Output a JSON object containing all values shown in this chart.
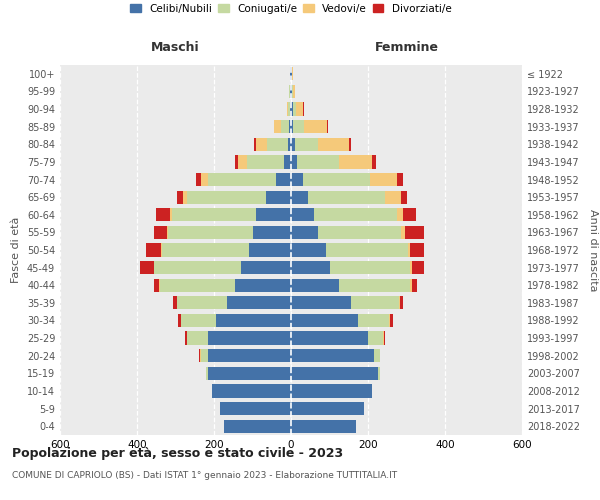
{
  "age_groups": [
    "0-4",
    "5-9",
    "10-14",
    "15-19",
    "20-24",
    "25-29",
    "30-34",
    "35-39",
    "40-44",
    "45-49",
    "50-54",
    "55-59",
    "60-64",
    "65-69",
    "70-74",
    "75-79",
    "80-84",
    "85-89",
    "90-94",
    "95-99",
    "100+"
  ],
  "birth_years": [
    "2018-2022",
    "2013-2017",
    "2008-2012",
    "2003-2007",
    "1998-2002",
    "1993-1997",
    "1988-1992",
    "1983-1987",
    "1978-1982",
    "1973-1977",
    "1968-1972",
    "1963-1967",
    "1958-1962",
    "1953-1957",
    "1948-1952",
    "1943-1947",
    "1938-1942",
    "1933-1937",
    "1928-1932",
    "1923-1927",
    "≤ 1922"
  ],
  "maschi": {
    "celibi": [
      175,
      185,
      205,
      215,
      215,
      215,
      195,
      165,
      145,
      130,
      110,
      100,
      90,
      65,
      40,
      18,
      8,
      5,
      3,
      2,
      2
    ],
    "coniugati": [
      0,
      0,
      0,
      5,
      20,
      55,
      90,
      130,
      195,
      225,
      225,
      220,
      220,
      205,
      175,
      95,
      55,
      20,
      5,
      2,
      1
    ],
    "vedovi": [
      0,
      0,
      0,
      0,
      1,
      1,
      1,
      1,
      2,
      2,
      2,
      2,
      5,
      10,
      20,
      25,
      28,
      18,
      3,
      1,
      0
    ],
    "divorziati": [
      0,
      0,
      0,
      1,
      3,
      5,
      8,
      10,
      15,
      35,
      40,
      35,
      35,
      15,
      12,
      8,
      5,
      2,
      0,
      0,
      0
    ]
  },
  "femmine": {
    "nubili": [
      170,
      190,
      210,
      225,
      215,
      200,
      175,
      155,
      125,
      100,
      90,
      70,
      60,
      45,
      30,
      15,
      10,
      5,
      4,
      3,
      2
    ],
    "coniugate": [
      0,
      0,
      0,
      5,
      15,
      40,
      80,
      125,
      185,
      210,
      215,
      215,
      215,
      200,
      175,
      110,
      60,
      28,
      8,
      2,
      1
    ],
    "vedove": [
      0,
      0,
      0,
      0,
      0,
      1,
      1,
      2,
      3,
      5,
      5,
      10,
      15,
      40,
      70,
      85,
      80,
      60,
      20,
      5,
      1
    ],
    "divorziate": [
      0,
      0,
      0,
      0,
      1,
      3,
      8,
      10,
      15,
      30,
      35,
      50,
      35,
      15,
      15,
      10,
      5,
      2,
      1,
      0,
      0
    ]
  },
  "colors": {
    "celibi_nubili": "#4472a8",
    "coniugati": "#c5d9a1",
    "vedovi": "#f5c97a",
    "divorziati": "#cc2222"
  },
  "xlim": 600,
  "title": "Popolazione per età, sesso e stato civile - 2023",
  "subtitle": "COMUNE DI CAPRIOLO (BS) - Dati ISTAT 1° gennaio 2023 - Elaborazione TUTTITALIA.IT",
  "xlabel_left": "Maschi",
  "xlabel_right": "Femmine",
  "ylabel_left": "Fasce di età",
  "ylabel_right": "Anni di nascita"
}
